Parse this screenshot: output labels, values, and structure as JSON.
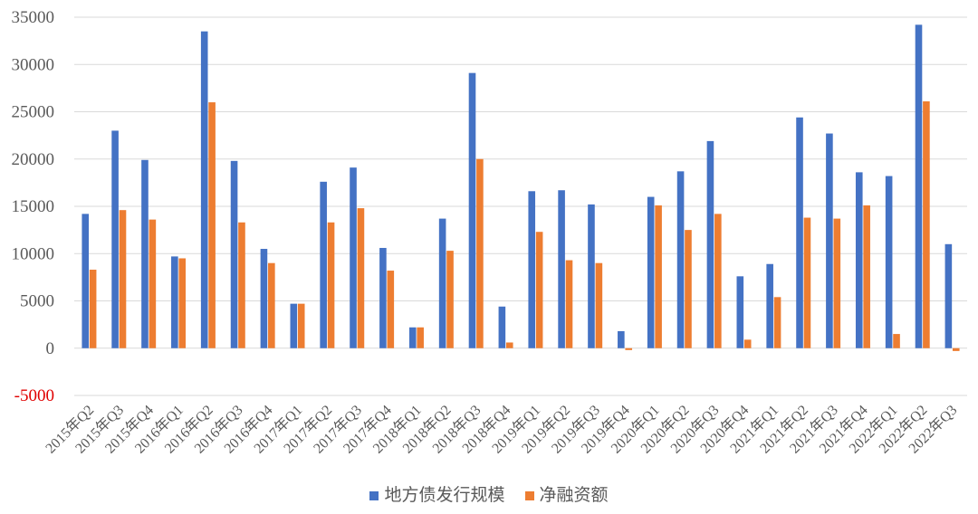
{
  "chart_data": {
    "type": "bar",
    "title": "",
    "xlabel": "",
    "ylabel": "",
    "ylim": [
      -5000,
      35000
    ],
    "y_ticks": [
      "-5000",
      "0",
      "5000",
      "10000",
      "15000",
      "20000",
      "25000",
      "30000",
      "35000"
    ],
    "y_tick_values": [
      -5000,
      0,
      5000,
      10000,
      15000,
      20000,
      25000,
      30000,
      35000
    ],
    "negative_tick_color": "#e00000",
    "grid": true,
    "legend_position": "bottom",
    "categories": [
      "2015年Q2",
      "2015年Q3",
      "2015年Q4",
      "2016年Q1",
      "2016年Q2",
      "2016年Q3",
      "2016年Q4",
      "2017年Q1",
      "2017年Q2",
      "2017年Q3",
      "2017年Q4",
      "2018年Q1",
      "2018年Q2",
      "2018年Q3",
      "2018年Q4",
      "2019年Q1",
      "2019年Q2",
      "2019年Q3",
      "2019年Q4",
      "2020年Q1",
      "2020年Q2",
      "2020年Q3",
      "2020年Q4",
      "2021年Q1",
      "2021年Q2",
      "2021年Q3",
      "2021年Q4",
      "2022年Q1",
      "2022年Q2",
      "2022年Q3"
    ],
    "series": [
      {
        "name": "地方债发行规模",
        "color": "#4472c4",
        "values": [
          14200,
          23000,
          19900,
          9700,
          33500,
          19800,
          10500,
          4700,
          17600,
          19100,
          10600,
          2200,
          13700,
          29100,
          4400,
          16600,
          16700,
          15200,
          1800,
          16000,
          18700,
          21900,
          7600,
          8900,
          24400,
          22700,
          18600,
          18200,
          34200,
          11000
        ]
      },
      {
        "name": "净融资额",
        "color": "#ed7d31",
        "values": [
          8300,
          14600,
          13600,
          9500,
          26000,
          13300,
          9000,
          4700,
          13300,
          14800,
          8200,
          2200,
          10300,
          20000,
          600,
          12300,
          9300,
          9000,
          -200,
          15100,
          12500,
          14200,
          900,
          5400,
          13800,
          13700,
          15100,
          1500,
          26100,
          -300
        ]
      }
    ]
  }
}
